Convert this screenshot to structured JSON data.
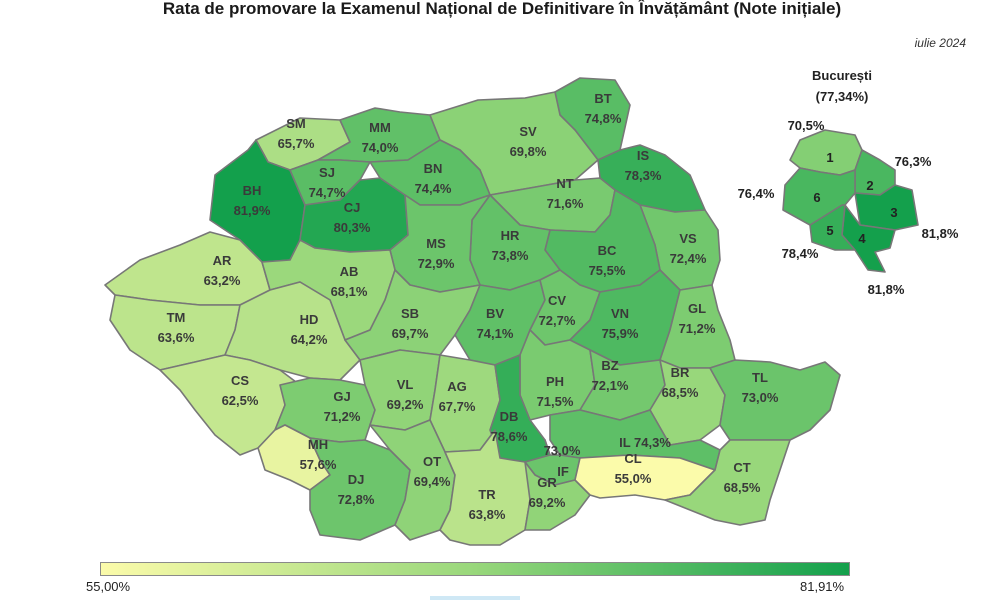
{
  "title": "Rata de promovare la Examenul Național de Definitivare în Învățământ (Note inițiale)",
  "date": "iulie 2024",
  "legend": {
    "min_label": "55,00%",
    "max_label": "81,91%",
    "min": 55.0,
    "max": 81.91,
    "color_low": "#fbfbaa",
    "color_high": "#13a04c"
  },
  "counties": [
    {
      "code": "SM",
      "value": "65,7%",
      "rate": 65.7
    },
    {
      "code": "MM",
      "value": "74,0%",
      "rate": 74.0
    },
    {
      "code": "BT",
      "value": "74,8%",
      "rate": 74.8
    },
    {
      "code": "SV",
      "value": "69,8%",
      "rate": 69.8
    },
    {
      "code": "IS",
      "value": "78,3%",
      "rate": 78.3
    },
    {
      "code": "BH",
      "value": "81,9%",
      "rate": 81.9
    },
    {
      "code": "SJ",
      "value": "74,7%",
      "rate": 74.7
    },
    {
      "code": "CJ",
      "value": "80,3%",
      "rate": 80.3
    },
    {
      "code": "BN",
      "value": "74,4%",
      "rate": 74.4
    },
    {
      "code": "NT",
      "value": "71,6%",
      "rate": 71.6
    },
    {
      "code": "VS",
      "value": "72,4%",
      "rate": 72.4
    },
    {
      "code": "BC",
      "value": "75,5%",
      "rate": 75.5
    },
    {
      "code": "HR",
      "value": "73,8%",
      "rate": 73.8
    },
    {
      "code": "MS",
      "value": "72,9%",
      "rate": 72.9
    },
    {
      "code": "AR",
      "value": "63,2%",
      "rate": 63.2
    },
    {
      "code": "AB",
      "value": "68,1%",
      "rate": 68.1
    },
    {
      "code": "TM",
      "value": "63,6%",
      "rate": 63.6
    },
    {
      "code": "HD",
      "value": "64,2%",
      "rate": 64.2
    },
    {
      "code": "SB",
      "value": "69,7%",
      "rate": 69.7
    },
    {
      "code": "BV",
      "value": "74,1%",
      "rate": 74.1
    },
    {
      "code": "CV",
      "value": "72,7%",
      "rate": 72.7
    },
    {
      "code": "VN",
      "value": "75,9%",
      "rate": 75.9
    },
    {
      "code": "GL",
      "value": "71,2%",
      "rate": 71.2
    },
    {
      "code": "CS",
      "value": "62,5%",
      "rate": 62.5
    },
    {
      "code": "GJ",
      "value": "71,2%",
      "rate": 71.2
    },
    {
      "code": "VL",
      "value": "69,2%",
      "rate": 69.2
    },
    {
      "code": "AG",
      "value": "67,7%",
      "rate": 67.7
    },
    {
      "code": "PH",
      "value": "71,5%",
      "rate": 71.5
    },
    {
      "code": "BZ",
      "value": "72,1%",
      "rate": 72.1
    },
    {
      "code": "BR",
      "value": "68,5%",
      "rate": 68.5
    },
    {
      "code": "TL",
      "value": "73,0%",
      "rate": 73.0
    },
    {
      "code": "DB",
      "value": "78,6%",
      "rate": 78.6
    },
    {
      "code": "MH",
      "value": "57,6%",
      "rate": 57.6
    },
    {
      "code": "IL",
      "value": "74,3%",
      "rate": 74.3
    },
    {
      "code": "IF",
      "value": "73,0%",
      "rate": 73.0
    },
    {
      "code": "DJ",
      "value": "72,8%",
      "rate": 72.8
    },
    {
      "code": "OT",
      "value": "69,4%",
      "rate": 69.4
    },
    {
      "code": "TR",
      "value": "63,8%",
      "rate": 63.8
    },
    {
      "code": "GR",
      "value": "69,2%",
      "rate": 69.2
    },
    {
      "code": "CL",
      "value": "55,0%",
      "rate": 55.0
    },
    {
      "code": "CT",
      "value": "68,5%",
      "rate": 68.5
    }
  ],
  "bucuresti": {
    "name": "București",
    "total": "(77,34%)",
    "sectors": [
      {
        "number": "1",
        "value": "70,5%",
        "rate": 70.5
      },
      {
        "number": "2",
        "value": "76,3%",
        "rate": 76.3
      },
      {
        "number": "3",
        "value": "81,8%",
        "rate": 81.8
      },
      {
        "number": "4",
        "value": "81,8%",
        "rate": 81.8
      },
      {
        "number": "5",
        "value": "78,4%",
        "rate": 78.4
      },
      {
        "number": "6",
        "value": "76,4%",
        "rate": 76.4
      }
    ]
  }
}
